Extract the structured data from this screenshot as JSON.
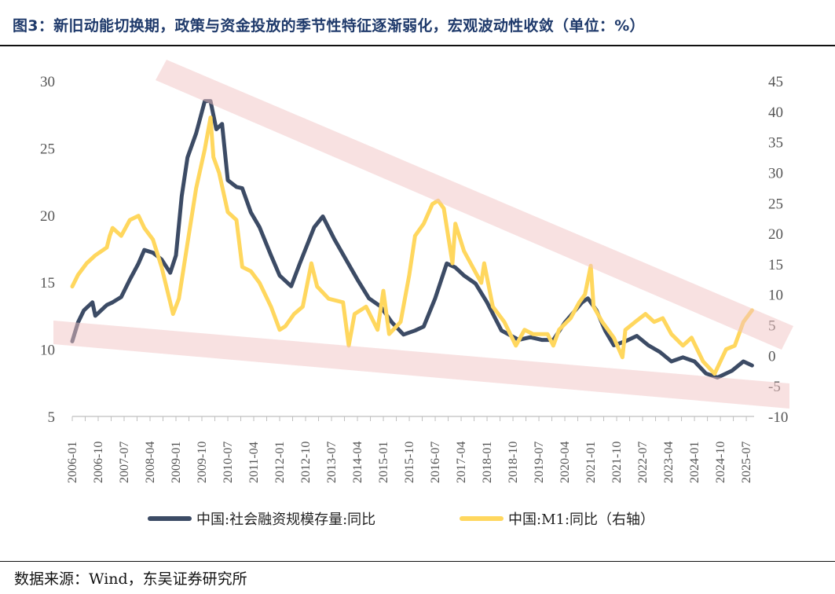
{
  "title": "图3：新旧动能切换期，政策与资金投放的季节性特征逐渐弱化，宏观波动性收敛（单位：%）",
  "source": "数据来源：Wind，东吴证券研究所",
  "colors": {
    "tsf": "#3c4b65",
    "m1": "#ffd75e",
    "band": "#f2c4c4",
    "title": "#1f3a6b"
  },
  "chart_data": {
    "type": "line",
    "title": "图3：新旧动能切换期，政策与资金投放的季节性特征逐渐弱化，宏观波动性收敛（单位：%）",
    "x_tick_labels": [
      "2006-01",
      "2006-10",
      "2007-07",
      "2008-04",
      "2009-01",
      "2009-10",
      "2010-07",
      "2011-04",
      "2012-01",
      "2012-10",
      "2013-07",
      "2014-04",
      "2015-01",
      "2015-10",
      "2016-07",
      "2017-04",
      "2018-01",
      "2018-10",
      "2019-07",
      "2020-04",
      "2021-01",
      "2021-10",
      "2022-07",
      "2023-04",
      "2024-01",
      "2024-10",
      "2025-07"
    ],
    "y_left": {
      "ticks": [
        "5",
        "10",
        "15",
        "20",
        "25",
        "30"
      ],
      "range": [
        5,
        30
      ]
    },
    "y_right": {
      "ticks": [
        "-10",
        "-5",
        "0",
        "5",
        "10",
        "15",
        "20",
        "25",
        "30",
        "35",
        "40",
        "45"
      ],
      "range": [
        -10,
        45
      ]
    },
    "grid": false,
    "legend_position": "bottom",
    "annotations": "two shaded converging trend bands (upper descending, lower slightly descending)",
    "series": [
      {
        "name": "中国:社会融资规模存量:同比",
        "axis": "left",
        "color": "#3c4b65",
        "points": [
          [
            "2006-01",
            10.6
          ],
          [
            "2006-03",
            12.0
          ],
          [
            "2006-05",
            12.9
          ],
          [
            "2006-08",
            13.5
          ],
          [
            "2006-09",
            12.5
          ],
          [
            "2007-01",
            13.3
          ],
          [
            "2007-03",
            13.5
          ],
          [
            "2007-06",
            13.9
          ],
          [
            "2007-09",
            15.2
          ],
          [
            "2007-12",
            16.4
          ],
          [
            "2008-02",
            17.4
          ],
          [
            "2008-05",
            17.2
          ],
          [
            "2008-08",
            16.7
          ],
          [
            "2008-11",
            15.7
          ],
          [
            "2009-01",
            17.0
          ],
          [
            "2009-03",
            21.4
          ],
          [
            "2009-05",
            24.3
          ],
          [
            "2009-08",
            26.1
          ],
          [
            "2009-11",
            28.5
          ],
          [
            "2010-01",
            28.5
          ],
          [
            "2010-03",
            26.4
          ],
          [
            "2010-05",
            26.8
          ],
          [
            "2010-07",
            22.6
          ],
          [
            "2010-10",
            22.1
          ],
          [
            "2010-12",
            22.0
          ],
          [
            "2011-03",
            20.2
          ],
          [
            "2011-06",
            19.1
          ],
          [
            "2011-10",
            17.0
          ],
          [
            "2012-01",
            15.5
          ],
          [
            "2012-05",
            14.7
          ],
          [
            "2012-08",
            16.4
          ],
          [
            "2013-01",
            19.1
          ],
          [
            "2013-04",
            19.9
          ],
          [
            "2013-08",
            18.2
          ],
          [
            "2013-12",
            16.7
          ],
          [
            "2014-04",
            15.2
          ],
          [
            "2014-08",
            13.8
          ],
          [
            "2014-12",
            13.2
          ],
          [
            "2015-04",
            12.0
          ],
          [
            "2015-08",
            11.1
          ],
          [
            "2015-12",
            11.4
          ],
          [
            "2016-03",
            11.7
          ],
          [
            "2016-07",
            13.8
          ],
          [
            "2016-11",
            16.4
          ],
          [
            "2017-02",
            16.1
          ],
          [
            "2017-05",
            15.5
          ],
          [
            "2017-09",
            14.9
          ],
          [
            "2018-01",
            13.5
          ],
          [
            "2018-06",
            11.4
          ],
          [
            "2018-12",
            10.7
          ],
          [
            "2019-04",
            10.9
          ],
          [
            "2019-08",
            10.7
          ],
          [
            "2019-12",
            10.7
          ],
          [
            "2020-04",
            12.0
          ],
          [
            "2020-10",
            13.5
          ],
          [
            "2020-12",
            13.8
          ],
          [
            "2021-03",
            12.9
          ],
          [
            "2021-06",
            11.4
          ],
          [
            "2021-09",
            10.3
          ],
          [
            "2022-01",
            10.6
          ],
          [
            "2022-05",
            11.0
          ],
          [
            "2022-09",
            10.3
          ],
          [
            "2023-01",
            9.8
          ],
          [
            "2023-05",
            9.1
          ],
          [
            "2023-09",
            9.4
          ],
          [
            "2024-01",
            9.1
          ],
          [
            "2024-05",
            8.2
          ],
          [
            "2024-09",
            7.9
          ],
          [
            "2025-02",
            8.4
          ],
          [
            "2025-06",
            9.1
          ],
          [
            "2025-09",
            8.8
          ]
        ]
      },
      {
        "name": "中国:M1:同比（右轴）",
        "axis": "right",
        "color": "#ffd75e",
        "points": [
          [
            "2006-01",
            11.3
          ],
          [
            "2006-03",
            13.2
          ],
          [
            "2006-06",
            15.1
          ],
          [
            "2006-09",
            16.4
          ],
          [
            "2007-01",
            17.7
          ],
          [
            "2007-02",
            19.6
          ],
          [
            "2007-03",
            20.9
          ],
          [
            "2007-06",
            19.6
          ],
          [
            "2007-09",
            22.2
          ],
          [
            "2007-12",
            22.9
          ],
          [
            "2008-02",
            20.9
          ],
          [
            "2008-05",
            19.0
          ],
          [
            "2008-08",
            14.5
          ],
          [
            "2008-11",
            8.7
          ],
          [
            "2008-12",
            6.8
          ],
          [
            "2009-02",
            9.3
          ],
          [
            "2009-05",
            18.4
          ],
          [
            "2009-08",
            27.4
          ],
          [
            "2009-11",
            33.8
          ],
          [
            "2010-01",
            39.0
          ],
          [
            "2010-02",
            32.5
          ],
          [
            "2010-04",
            29.9
          ],
          [
            "2010-07",
            23.5
          ],
          [
            "2010-10",
            22.2
          ],
          [
            "2010-12",
            14.5
          ],
          [
            "2011-03",
            13.8
          ],
          [
            "2011-06",
            11.9
          ],
          [
            "2011-10",
            8.0
          ],
          [
            "2012-01",
            4.2
          ],
          [
            "2012-03",
            4.8
          ],
          [
            "2012-06",
            6.8
          ],
          [
            "2012-09",
            8.0
          ],
          [
            "2012-12",
            15.1
          ],
          [
            "2013-02",
            11.3
          ],
          [
            "2013-06",
            9.3
          ],
          [
            "2013-11",
            8.7
          ],
          [
            "2014-01",
            1.6
          ],
          [
            "2014-03",
            6.8
          ],
          [
            "2014-07",
            8.0
          ],
          [
            "2014-11",
            4.2
          ],
          [
            "2015-01",
            10.6
          ],
          [
            "2015-03",
            3.5
          ],
          [
            "2015-07",
            5.5
          ],
          [
            "2015-10",
            13.2
          ],
          [
            "2015-12",
            19.6
          ],
          [
            "2016-03",
            21.6
          ],
          [
            "2016-06",
            24.8
          ],
          [
            "2016-08",
            25.4
          ],
          [
            "2016-10",
            24.1
          ],
          [
            "2017-01",
            15.1
          ],
          [
            "2017-02",
            21.6
          ],
          [
            "2017-05",
            17.1
          ],
          [
            "2017-08",
            14.5
          ],
          [
            "2017-11",
            11.9
          ],
          [
            "2017-12",
            15.1
          ],
          [
            "2018-03",
            8.0
          ],
          [
            "2018-07",
            5.5
          ],
          [
            "2018-11",
            1.6
          ],
          [
            "2019-02",
            4.2
          ],
          [
            "2019-05",
            3.5
          ],
          [
            "2019-10",
            3.5
          ],
          [
            "2019-12",
            1.6
          ],
          [
            "2020-02",
            4.2
          ],
          [
            "2020-06",
            6.1
          ],
          [
            "2020-09",
            8.7
          ],
          [
            "2020-11",
            10.0
          ],
          [
            "2021-01",
            14.7
          ],
          [
            "2021-02",
            8.0
          ],
          [
            "2021-05",
            5.5
          ],
          [
            "2021-09",
            2.9
          ],
          [
            "2021-12",
            -0.3
          ],
          [
            "2022-01",
            4.2
          ],
          [
            "2022-05",
            5.7
          ],
          [
            "2022-08",
            6.8
          ],
          [
            "2022-11",
            5.5
          ],
          [
            "2023-02",
            6.1
          ],
          [
            "2023-05",
            3.5
          ],
          [
            "2023-09",
            1.6
          ],
          [
            "2023-12",
            2.9
          ],
          [
            "2024-04",
            -1.0
          ],
          [
            "2024-08",
            -3.0
          ],
          [
            "2024-12",
            1.0
          ],
          [
            "2025-03",
            1.6
          ],
          [
            "2025-06",
            5.5
          ],
          [
            "2025-09",
            7.4
          ]
        ]
      }
    ]
  }
}
